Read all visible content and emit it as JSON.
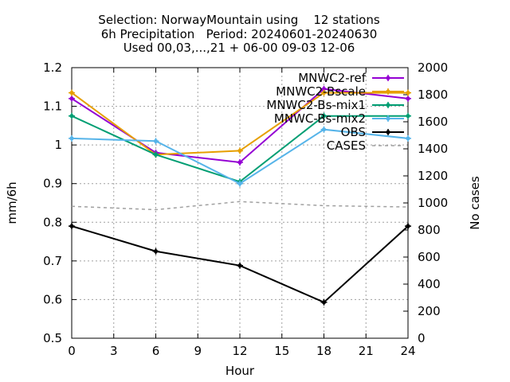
{
  "chart_data": {
    "type": "line",
    "title_lines": [
      "Selection: NorwayMountain using    12 stations",
      "6h Precipitation   Period: 20240601-20240630",
      "Used 00,03,...,21 + 06-00 09-03 12-06"
    ],
    "xlabel": "Hour",
    "ylabel": "mm/6h",
    "y2label": "No cases",
    "xlim": [
      0,
      24
    ],
    "ylim": [
      0.5,
      1.2
    ],
    "y2lim": [
      0,
      2000
    ],
    "xticks": [
      0,
      3,
      6,
      9,
      12,
      15,
      18,
      21,
      24
    ],
    "yticks": [
      0.5,
      0.6,
      0.7,
      0.8,
      0.9,
      1,
      1.1,
      1.2
    ],
    "y2ticks": [
      0,
      200,
      400,
      600,
      800,
      1000,
      1200,
      1400,
      1600,
      1800,
      2000
    ],
    "xtick_labels": [
      "0",
      "3",
      "6",
      "9",
      "12",
      "15",
      "18",
      "21",
      "24"
    ],
    "ytick_labels": [
      "0.5",
      "0.6",
      "0.7",
      "0.8",
      "0.9",
      "1",
      "1.1",
      "1.2"
    ],
    "y2tick_labels": [
      "0",
      "200",
      "400",
      "600",
      "800",
      "1000",
      "1200",
      "1400",
      "1600",
      "1800",
      "2000"
    ],
    "grid": true,
    "legend_position": "top-right",
    "x": [
      0,
      6,
      12,
      18,
      24
    ],
    "series": [
      {
        "name": "MNWC2-ref",
        "color": "#9400d3",
        "marker": "plus",
        "axis": "y",
        "values": [
          1.12,
          0.98,
          0.955,
          1.145,
          1.12
        ]
      },
      {
        "name": "MNWC2-Bscale",
        "color": "#e69f00",
        "marker": "plus",
        "axis": "y",
        "values": [
          1.135,
          0.975,
          0.985,
          1.135,
          1.135
        ]
      },
      {
        "name": "MNWC2-Bs-mix1",
        "color": "#009e73",
        "marker": "plus",
        "axis": "y",
        "values": [
          1.075,
          0.975,
          0.905,
          1.075,
          1.075
        ]
      },
      {
        "name": "MNWC-Bs-mix2",
        "color": "#56b4e9",
        "marker": "plus",
        "axis": "y",
        "values": [
          1.017,
          1.01,
          0.9,
          1.04,
          1.017
        ]
      },
      {
        "name": "OBS",
        "color": "#000000",
        "marker": "plus",
        "axis": "y",
        "values": [
          0.79,
          0.725,
          0.688,
          0.593,
          0.79
        ]
      },
      {
        "name": "CASES",
        "color": "#a0a0a0",
        "marker": "none",
        "dashed": true,
        "axis": "y2",
        "values": [
          975,
          950,
          1010,
          980,
          970
        ]
      }
    ]
  }
}
